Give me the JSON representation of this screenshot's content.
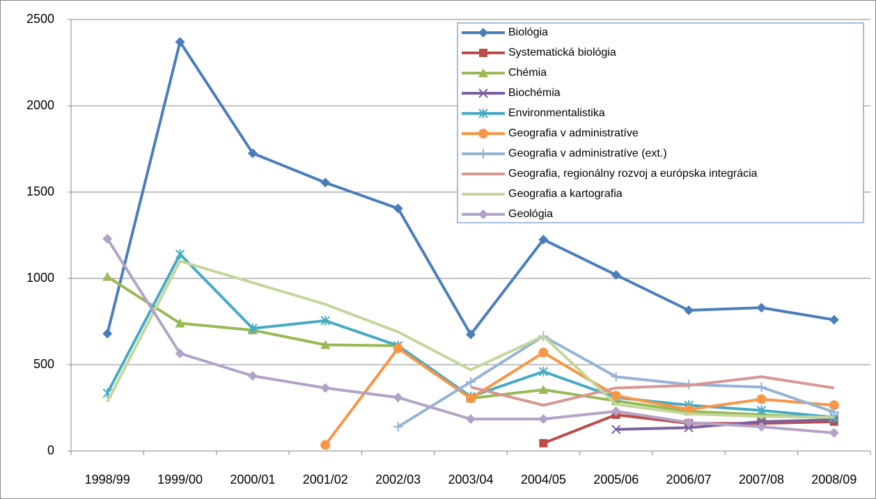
{
  "chart_data": {
    "type": "line",
    "categories": [
      "1998/99",
      "1999/00",
      "2000/01",
      "2001/02",
      "2002/03",
      "2003/04",
      "2004/05",
      "2005/06",
      "2006/07",
      "2007/08",
      "2008/09"
    ],
    "ylim": [
      0,
      2500
    ],
    "yticks": [
      0,
      500,
      1000,
      1500,
      2000,
      2500
    ],
    "grid": true,
    "legend": "upper right",
    "series": [
      {
        "name": "Biológia",
        "color": "#4a7ebb",
        "marker": "diamond",
        "values": [
          680,
          2370,
          1725,
          1555,
          1405,
          675,
          1225,
          1020,
          815,
          830,
          760
        ]
      },
      {
        "name": "Systematická biológia",
        "color": "#be4b48",
        "marker": "square",
        "values": [
          null,
          null,
          null,
          null,
          null,
          null,
          45,
          210,
          160,
          160,
          170
        ]
      },
      {
        "name": "Chémia",
        "color": "#98b954",
        "marker": "triangle",
        "values": [
          1010,
          740,
          700,
          615,
          610,
          305,
          355,
          290,
          230,
          210,
          190
        ]
      },
      {
        "name": "Biochémia",
        "color": "#7d60a0",
        "marker": "x",
        "values": [
          null,
          null,
          null,
          null,
          null,
          null,
          null,
          125,
          135,
          170,
          180
        ]
      },
      {
        "name": "Environmentalistika",
        "color": "#46aac5",
        "marker": "asterisk",
        "values": [
          335,
          1140,
          710,
          755,
          610,
          315,
          460,
          310,
          265,
          235,
          195
        ]
      },
      {
        "name": "Geografia v administratíve",
        "color": "#f79646",
        "marker": "circle",
        "values": [
          null,
          null,
          null,
          35,
          595,
          305,
          570,
          320,
          240,
          300,
          265
        ]
      },
      {
        "name": "Geografia v administratíve (ext.)",
        "color": "#95b3d7",
        "marker": "plus",
        "values": [
          null,
          null,
          null,
          null,
          140,
          400,
          665,
          430,
          385,
          370,
          225
        ]
      },
      {
        "name": "Geografia, regionálny rozvoj a európska integrácia",
        "color": "#d99694",
        "marker": "none",
        "values": [
          null,
          null,
          null,
          null,
          null,
          370,
          265,
          365,
          380,
          430,
          365
        ]
      },
      {
        "name": "Geografia a kartografia",
        "color": "#c3d69b",
        "marker": "none",
        "values": [
          285,
          1100,
          975,
          850,
          690,
          470,
          665,
          270,
          215,
          200,
          195
        ]
      },
      {
        "name": "Geológia",
        "color": "#b3a2c7",
        "marker": "diamond",
        "values": [
          1230,
          565,
          435,
          365,
          310,
          185,
          185,
          230,
          165,
          140,
          105
        ]
      }
    ]
  }
}
